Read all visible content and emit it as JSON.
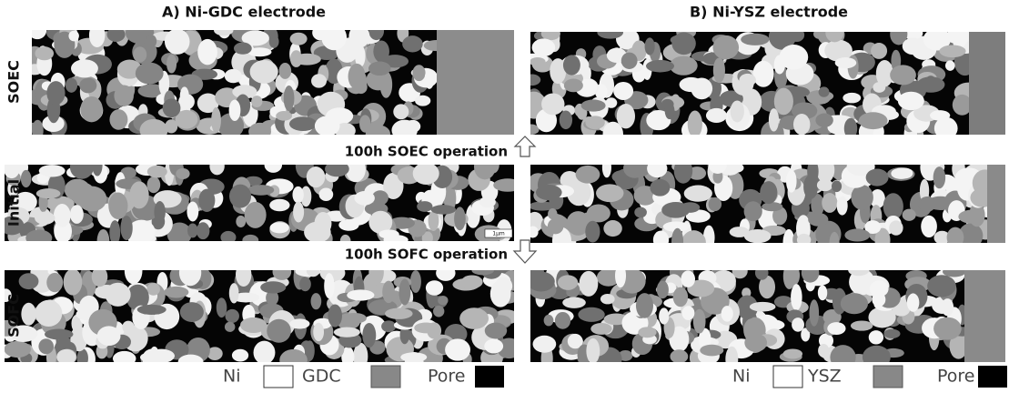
{
  "columns": [
    {
      "title": "A) Ni-GDC electrode",
      "legend": [
        "Ni",
        "GDC",
        "Pore"
      ]
    },
    {
      "title": "B) Ni-YSZ electrode",
      "legend": [
        "Ni",
        "YSZ",
        "Pore"
      ]
    }
  ],
  "rows": [
    "SOEC",
    "Initial",
    "SOFC"
  ],
  "operations": [
    "100h SOEC operation",
    "100h SOFC operation"
  ],
  "scale_bar": "1μm"
}
